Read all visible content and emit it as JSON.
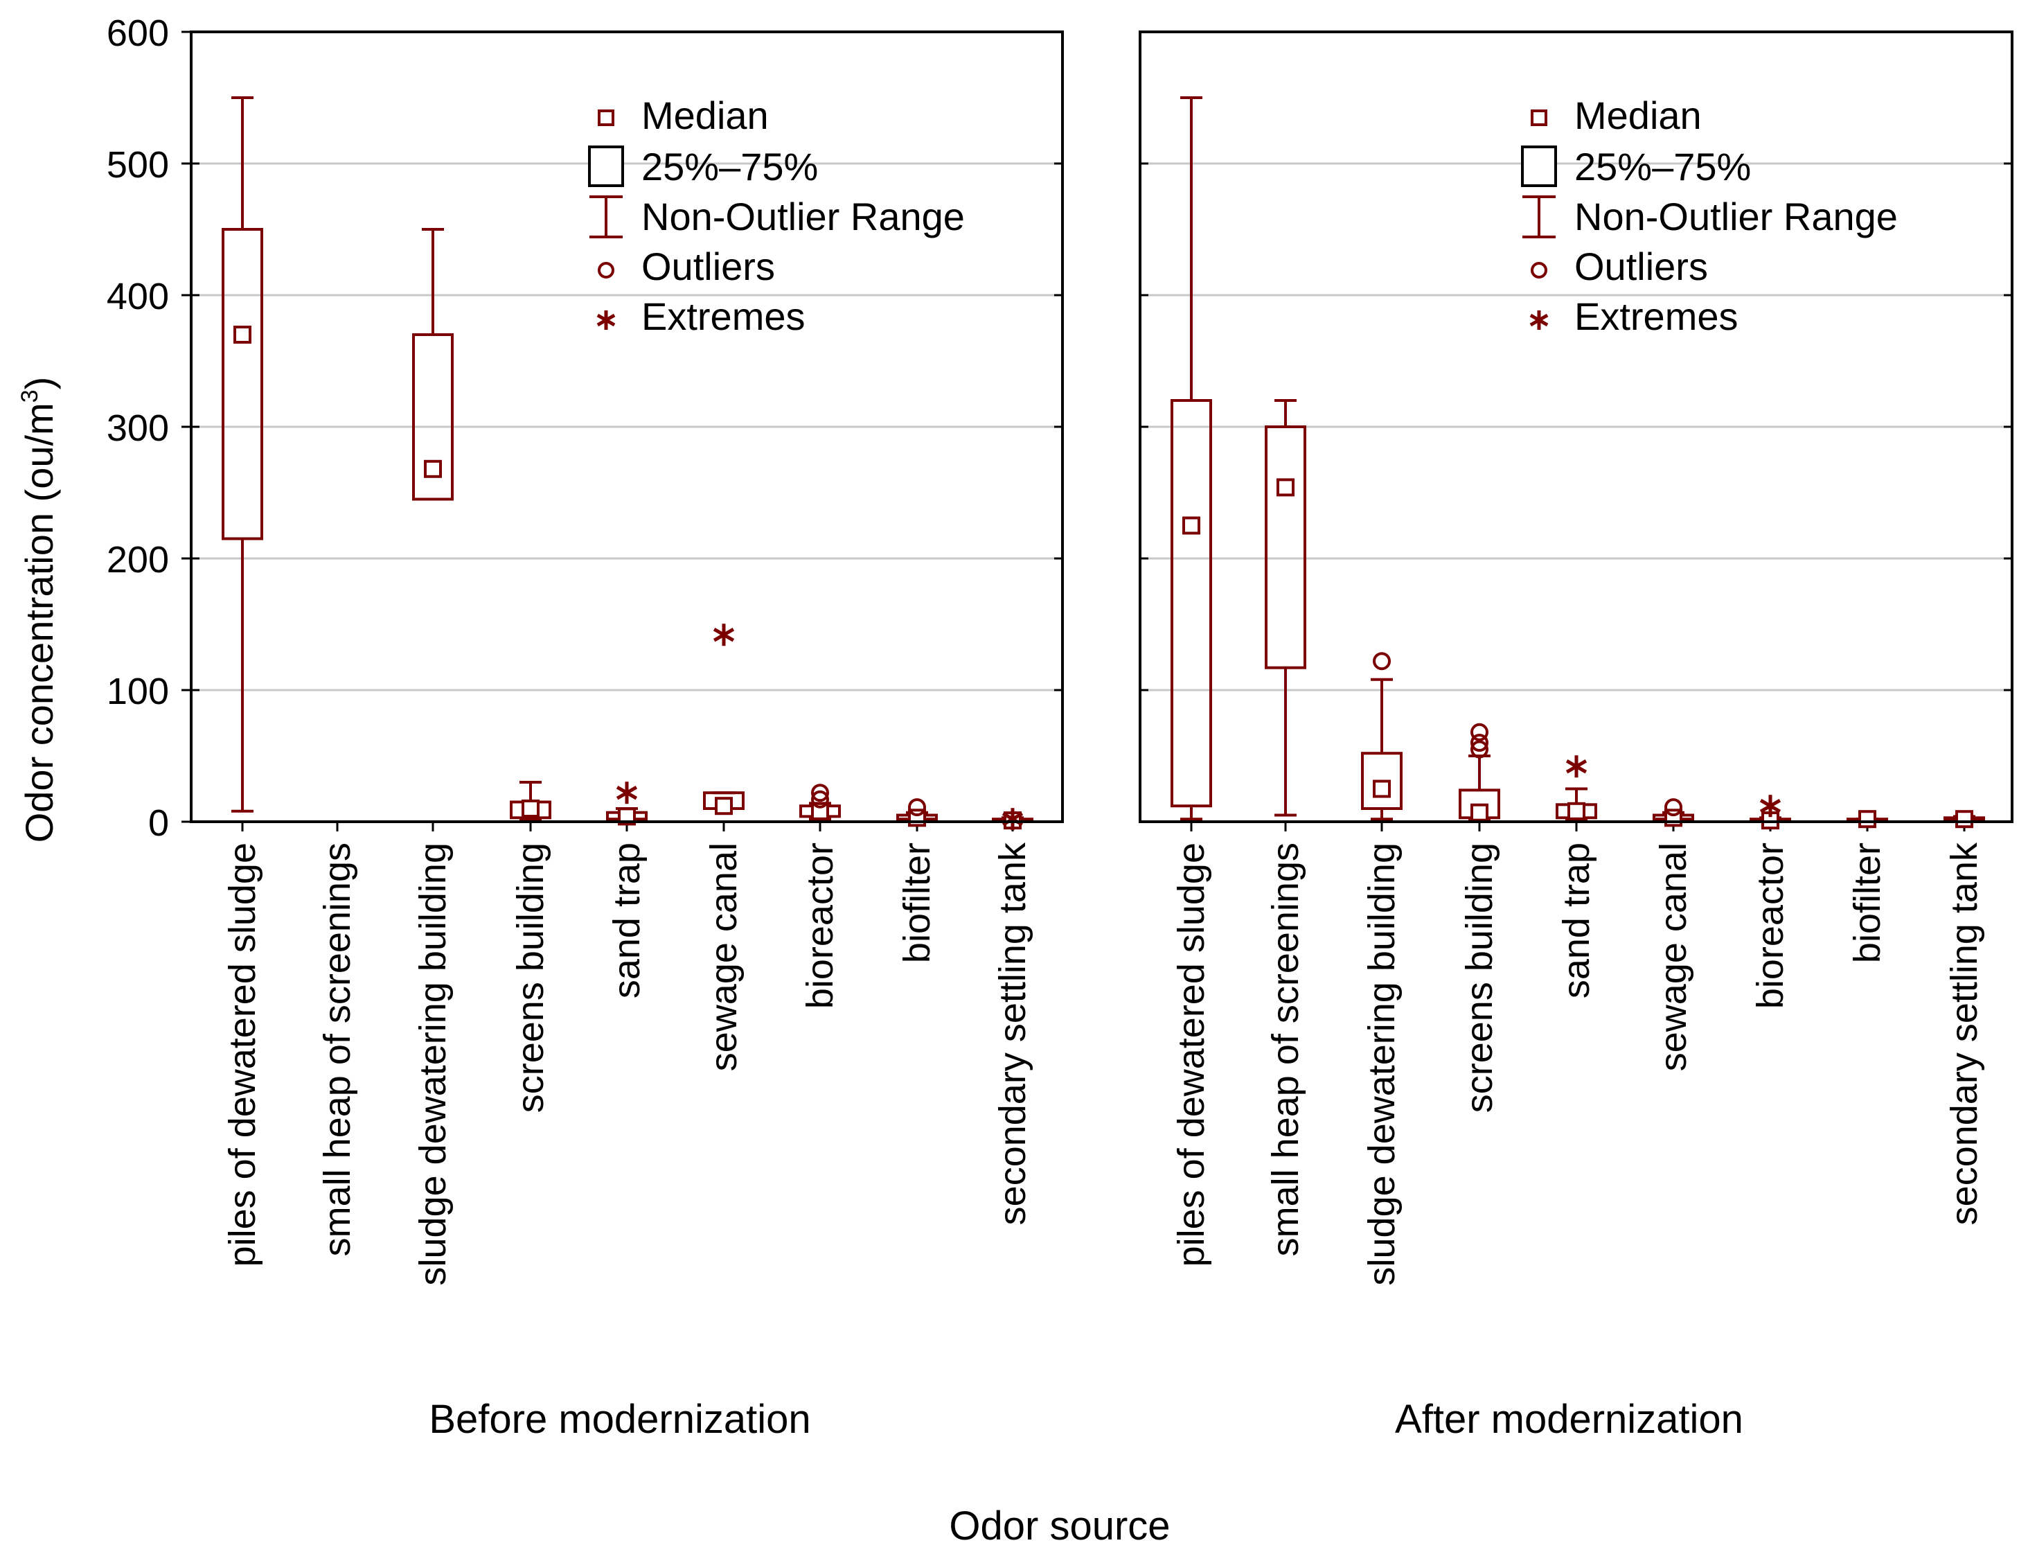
{
  "chart_data": {
    "type": "boxplot",
    "ylabel": "Odor concentration (ou/m",
    "ylabel_sup": "3",
    "ylabel_close": ")",
    "xlabel": "Odor source",
    "ylim": [
      0,
      600
    ],
    "yticks": [
      "0",
      "100",
      "200",
      "300",
      "400",
      "500",
      "600"
    ],
    "grid": true,
    "color": "#7b0000",
    "legend": {
      "position": "top-right",
      "entries": [
        "Median",
        "25%–75%",
        "Non-Outlier Range",
        "Outliers",
        "Extremes"
      ]
    },
    "categories": [
      "piles of dewatered sludge",
      "small heap of screenings",
      "sludge dewatering building",
      "screens building",
      "sand trap",
      "sewage canal",
      "bioreactor",
      "biofilter",
      "secondary settling tank"
    ],
    "panels": [
      {
        "name": "Before modernization",
        "boxes": [
          {
            "median": 370,
            "q1": 215,
            "q3": 450,
            "min": 8,
            "max": 550,
            "outliers": [],
            "extremes": []
          },
          null,
          {
            "median": 268,
            "q1": 245,
            "q3": 370,
            "min": 245,
            "max": 450,
            "outliers": [],
            "extremes": []
          },
          {
            "median": 10,
            "q1": 3,
            "q3": 15,
            "min": 2,
            "max": 30,
            "outliers": [],
            "extremes": []
          },
          {
            "median": 4,
            "q1": 2,
            "q3": 7,
            "min": 1,
            "max": 10,
            "outliers": [],
            "extremes": [
              22
            ]
          },
          {
            "median": 12,
            "q1": 10,
            "q3": 22,
            "min": 10,
            "max": 22,
            "outliers": [],
            "extremes": [
              142
            ]
          },
          {
            "median": 8,
            "q1": 4,
            "q3": 12,
            "min": 2,
            "max": 14,
            "outliers": [
              17,
              22
            ],
            "extremes": []
          },
          {
            "median": 3,
            "q1": 2,
            "q3": 5,
            "min": 1,
            "max": 7,
            "outliers": [
              11
            ],
            "extremes": []
          },
          {
            "median": 1,
            "q1": 1,
            "q3": 2,
            "min": 1,
            "max": 3,
            "outliers": [],
            "extremes": [
              2
            ]
          }
        ]
      },
      {
        "name": "After modernization",
        "boxes": [
          {
            "median": 225,
            "q1": 12,
            "q3": 320,
            "min": 2,
            "max": 550,
            "outliers": [],
            "extremes": []
          },
          {
            "median": 254,
            "q1": 117,
            "q3": 300,
            "min": 5,
            "max": 320,
            "outliers": [],
            "extremes": []
          },
          {
            "median": 25,
            "q1": 10,
            "q3": 52,
            "min": 2,
            "max": 108,
            "outliers": [
              122
            ],
            "extremes": []
          },
          {
            "median": 7,
            "q1": 3,
            "q3": 24,
            "min": 1,
            "max": 50,
            "outliers": [
              55,
              60,
              68
            ],
            "extremes": []
          },
          {
            "median": 8,
            "q1": 3,
            "q3": 13,
            "min": 1,
            "max": 25,
            "outliers": [],
            "extremes": [
              42
            ]
          },
          {
            "median": 3,
            "q1": 2,
            "q3": 5,
            "min": 1,
            "max": 7,
            "outliers": [
              11
            ],
            "extremes": []
          },
          {
            "median": 1,
            "q1": 1,
            "q3": 2,
            "min": 1,
            "max": 3,
            "outliers": [],
            "extremes": [
              12
            ]
          },
          {
            "median": 2,
            "q1": 2,
            "q3": 2,
            "min": 2,
            "max": 2,
            "outliers": [],
            "extremes": []
          },
          {
            "median": 2,
            "q1": 1,
            "q3": 3,
            "min": 1,
            "max": 4,
            "outliers": [],
            "extremes": []
          }
        ]
      }
    ]
  }
}
